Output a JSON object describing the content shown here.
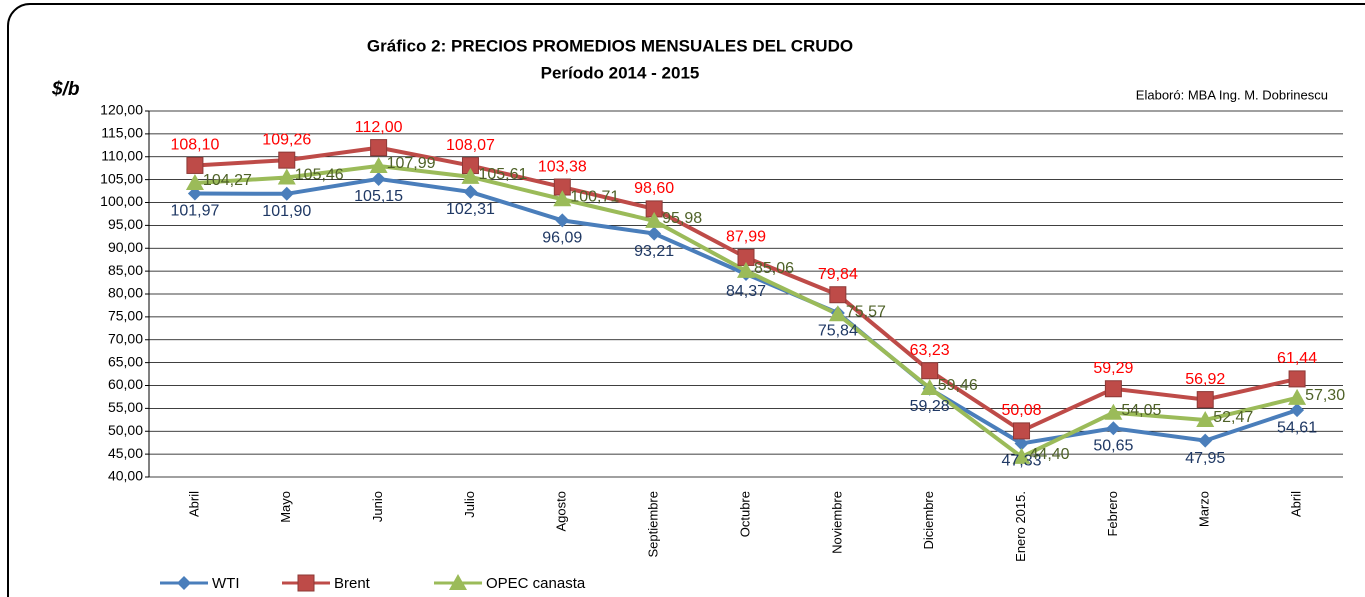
{
  "chart_data": {
    "type": "line",
    "title": "Gráfico 2: PRECIOS PROMEDIOS MENSUALES DEL CRUDO",
    "subtitle": "Período 2014 - 2015",
    "y_axis_label": "$/b",
    "annotation": "Elaboró: MBA Ing. M. Dobrinescu",
    "categories": [
      "Abril",
      "Mayo",
      "Junio",
      "Julio",
      "Agosto",
      "Septiembre",
      "Octubre",
      "Noviembre",
      "Diciembre",
      "Enero 2015.",
      "Febrero",
      "Marzo",
      "Abril"
    ],
    "series": [
      {
        "name": "WTI",
        "color": "#4a7ebb",
        "label_color": "#1f3864",
        "marker": "diamond",
        "values": [
          101.97,
          101.9,
          105.15,
          102.31,
          96.09,
          93.21,
          84.37,
          75.84,
          59.28,
          47.33,
          50.65,
          47.95,
          54.61
        ],
        "value_labels": [
          "101,97",
          "101,90",
          "105,15",
          "102,31",
          "96,09",
          "93,21",
          "84,37",
          "75,84",
          "59,28",
          "47,33",
          "50,65",
          "47,95",
          "54,61"
        ]
      },
      {
        "name": "Brent",
        "color": "#be4b48",
        "label_color": "#ff0000",
        "marker": "square",
        "values": [
          108.1,
          109.26,
          112.0,
          108.07,
          103.38,
          98.6,
          87.99,
          79.84,
          63.23,
          50.08,
          59.29,
          56.92,
          61.44
        ],
        "value_labels": [
          "108,10",
          "109,26",
          "112,00",
          "108,07",
          "103,38",
          "98,60",
          "87,99",
          "79,84",
          "63,23",
          "50,08",
          "59,29",
          "56,92",
          "61,44"
        ]
      },
      {
        "name": "OPEC canasta",
        "color": "#9bbb59",
        "label_color": "#4f6228",
        "marker": "triangle",
        "values": [
          104.27,
          105.46,
          107.99,
          105.61,
          100.71,
          95.98,
          85.06,
          75.57,
          59.46,
          44.4,
          54.05,
          52.47,
          57.3
        ],
        "value_labels": [
          "104,27",
          "105,46",
          "107,99",
          "105,61",
          "100,71",
          "95,98",
          "85,06",
          "75,57",
          "59,46",
          "44,40",
          "54,05",
          "52,47",
          "57,30"
        ]
      }
    ],
    "ylim": [
      40,
      120
    ],
    "yticks": [
      {
        "value": 40,
        "label": "40,00"
      },
      {
        "value": 45,
        "label": "45,00"
      },
      {
        "value": 50,
        "label": "50,00"
      },
      {
        "value": 55,
        "label": "55,00"
      },
      {
        "value": 60,
        "label": "60,00"
      },
      {
        "value": 65,
        "label": "65,00"
      },
      {
        "value": 70,
        "label": "70,00"
      },
      {
        "value": 75,
        "label": "75,00"
      },
      {
        "value": 80,
        "label": "80,00"
      },
      {
        "value": 85,
        "label": "85,00"
      },
      {
        "value": 90,
        "label": "90,00"
      },
      {
        "value": 95,
        "label": "95,00"
      },
      {
        "value": 100,
        "label": "100,00"
      },
      {
        "value": 105,
        "label": "105,00"
      },
      {
        "value": 110,
        "label": "110,00"
      },
      {
        "value": 115,
        "label": "115,00"
      },
      {
        "value": 120,
        "label": "120,00"
      }
    ],
    "grid": true
  }
}
